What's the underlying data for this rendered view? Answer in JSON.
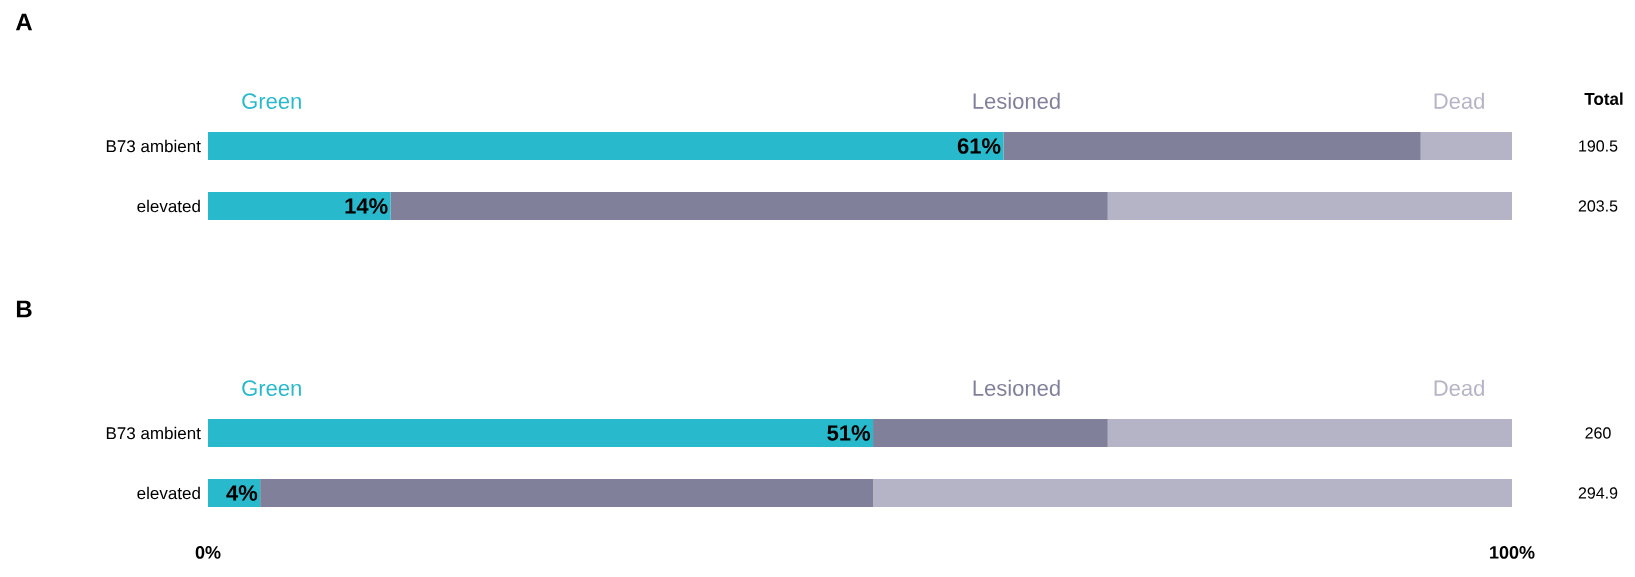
{
  "chart_data": [
    {
      "type": "bar",
      "orientation": "horizontal",
      "stacked": true,
      "title": "A",
      "categories": [
        "B73 ambient",
        "elevated"
      ],
      "xlim": [
        0,
        100
      ],
      "tick_labels": "y",
      "series": [
        {
          "name": "Green",
          "color": "#29b9cc",
          "values": [
            61,
            14
          ],
          "value_labels": [
            "61%",
            "14%"
          ]
        },
        {
          "name": "Lesioned",
          "color": "#80809b",
          "values": [
            32,
            55
          ]
        },
        {
          "name": "Dead",
          "color": "#b4b4c6",
          "values": [
            7,
            31
          ]
        }
      ],
      "annotations": [
        "Total",
        "190.5",
        "203.5"
      ]
    },
    {
      "type": "bar",
      "orientation": "horizontal",
      "stacked": true,
      "title": "B",
      "categories": [
        "B73 ambient",
        "elevated"
      ],
      "xlim": [
        0,
        100
      ],
      "xticks": [
        {
          "value": 0,
          "label": "0%"
        },
        {
          "value": 100,
          "label": "100%"
        }
      ],
      "series": [
        {
          "name": "Green",
          "color": "#29b9cc",
          "values": [
            51,
            4
          ],
          "value_labels": [
            "51%",
            "4%"
          ]
        },
        {
          "name": "Lesioned",
          "color": "#80809b",
          "values": [
            18,
            47
          ]
        },
        {
          "name": "Dead",
          "color": "#b4b4c6",
          "values": [
            31,
            49
          ]
        }
      ],
      "annotations": [
        "260",
        "294.9"
      ]
    }
  ]
}
